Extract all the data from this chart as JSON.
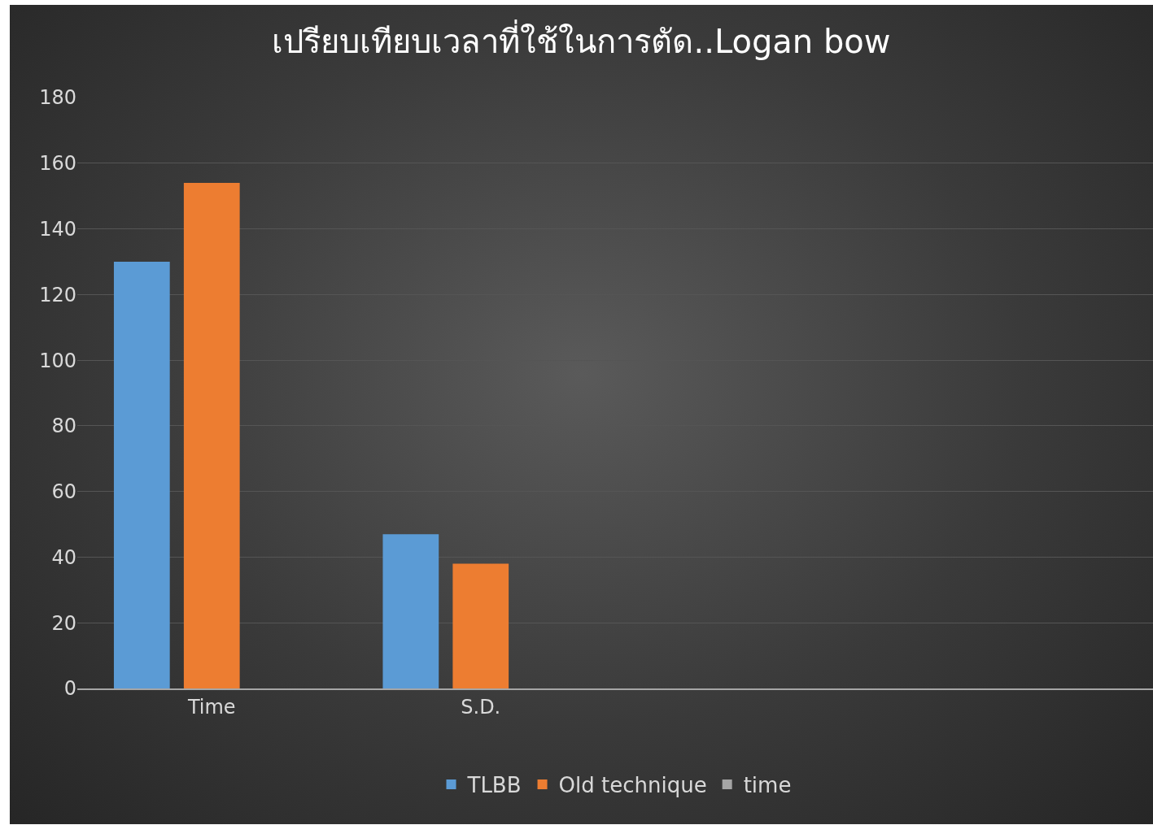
{
  "chart_data": {
    "type": "bar",
    "title": "เปรียบเทียบเวลาที่ใช้ในการตัด..Logan bow",
    "categories": [
      "Time",
      "S.D.",
      null,
      null
    ],
    "series": [
      {
        "name": "TLBB",
        "color": "#5b9bd5",
        "values": [
          130,
          47,
          null,
          null
        ]
      },
      {
        "name": "Old technique",
        "color": "#ed7d31",
        "values": [
          154,
          38,
          null,
          null
        ]
      },
      {
        "name": "time",
        "color": "#a5a5a5",
        "values": [
          null,
          null,
          null,
          null
        ]
      }
    ],
    "ylim": [
      0,
      180
    ],
    "yticks": [
      0,
      20,
      40,
      60,
      80,
      100,
      120,
      140,
      160,
      180
    ],
    "grid": "y",
    "legend": "bottom"
  }
}
